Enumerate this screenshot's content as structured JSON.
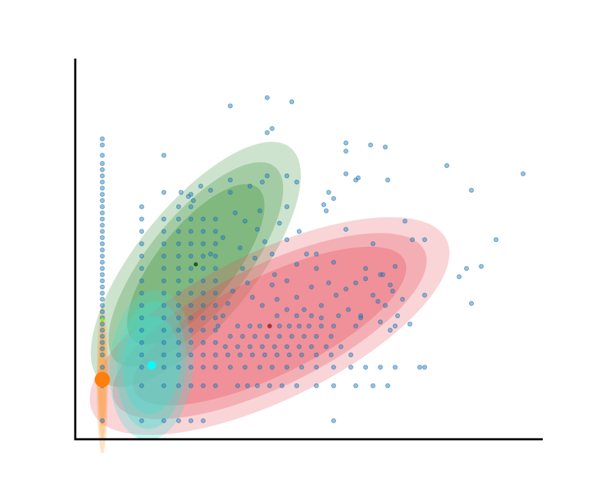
{
  "chart_data": {
    "type": "scatter",
    "title": "",
    "xlabel": "",
    "ylabel": "",
    "xlim": [
      0,
      19
    ],
    "ylim": [
      0,
      18.5
    ],
    "grid": false,
    "legend": "none",
    "colors": {
      "points": "#1f77b4",
      "green": "#2e8b2e",
      "red": "#e8505b",
      "cyan": "#40e0d0",
      "orange": "#ff7f0e"
    },
    "ellipses": [
      {
        "name": "green",
        "cx": 4.9,
        "cy": 8.5,
        "rx": [
          6.1,
          5.1,
          4.0
        ],
        "ry": [
          2.4,
          1.95,
          1.55
        ],
        "angle": 51,
        "color": "#2e8b2e",
        "opacity": [
          0.24,
          0.26,
          0.3
        ]
      },
      {
        "name": "red",
        "cx": 7.9,
        "cy": 5.5,
        "rx": [
          8.0,
          7.0,
          6.1
        ],
        "ry": [
          3.0,
          2.45,
          2.0
        ],
        "angle": 26,
        "color": "#e8505b",
        "opacity": [
          0.24,
          0.28,
          0.32
        ]
      },
      {
        "name": "cyan",
        "cx": 3.1,
        "cy": 3.6,
        "rx": [
          3.05,
          2.6,
          2.0
        ],
        "ry": [
          1.7,
          1.4,
          1.15
        ],
        "angle": 86,
        "color": "#40e0d0",
        "opacity": [
          0.28,
          0.32,
          0.38
        ]
      },
      {
        "name": "orange",
        "cx": 1.1,
        "cy": 2.9,
        "rx": [
          3.0,
          2.4,
          1.9
        ],
        "ry": [
          0.23,
          0.19,
          0.15
        ],
        "angle": 90,
        "color": "#ff9a3c",
        "opacity": [
          0.28,
          0.3,
          0.34
        ]
      }
    ],
    "means": [
      {
        "name": "green-mean",
        "x": 4.9,
        "y": 8.5,
        "color": "#1f5e1f",
        "size": 3
      },
      {
        "name": "red-mean",
        "x": 7.9,
        "y": 5.5,
        "color": "#c0282e",
        "size": 3
      },
      {
        "name": "cyan-mean",
        "x": 3.1,
        "y": 3.6,
        "color": "#00ffff",
        "size": 6
      },
      {
        "name": "orange-mean",
        "x": 1.1,
        "y": 2.9,
        "color": "#ff7f0e",
        "size": 11
      },
      {
        "name": "lime-mean",
        "x": 1.1,
        "y": 5.8,
        "color": "#7cfc00",
        "size": 2.5
      }
    ],
    "column_points": [
      {
        "x": 1.1,
        "y": [
          0.9,
          2.6,
          3.5,
          4.1,
          4.4,
          4.7,
          5.0,
          5.3,
          5.6,
          5.9,
          6.2,
          6.5,
          6.8,
          7.1,
          7.4,
          7.7,
          8.0,
          8.3,
          8.6,
          8.9,
          9.2,
          9.5,
          9.8,
          10.1,
          10.4,
          10.7,
          11.0,
          11.3,
          11.6,
          11.9,
          12.2,
          12.5,
          12.8,
          13.1,
          13.4,
          13.8,
          14.3,
          14.6
        ]
      },
      {
        "x": 2.7,
        "y": [
          0.9,
          2.6,
          3.5,
          4.1,
          4.7,
          5.3,
          5.9,
          6.5,
          7.1,
          7.7,
          8.3,
          8.9,
          9.5,
          10.1,
          10.7,
          11.3
        ]
      },
      {
        "x": 3.6,
        "y": [
          0.9,
          2.6,
          3.5,
          4.1,
          4.7,
          5.3,
          5.9,
          6.5,
          7.1,
          7.7,
          8.3,
          8.9,
          9.5,
          10.1,
          10.7
        ]
      },
      {
        "x": 4.2,
        "y": [
          0.9,
          2.6,
          3.5,
          4.1,
          4.7,
          5.3,
          5.9,
          6.5,
          7.1,
          7.7,
          8.3,
          8.9,
          9.5,
          10.1,
          10.7,
          11.3
        ]
      },
      {
        "x": 4.7,
        "y": [
          0.9,
          2.6,
          3.5,
          4.1,
          4.7,
          5.3,
          5.9,
          6.5,
          7.1,
          7.7,
          8.3,
          8.9,
          9.5,
          10.1,
          10.7,
          11.3,
          11.9
        ]
      },
      {
        "x": 5.2,
        "y": [
          0.9,
          2.6,
          3.5,
          4.1,
          4.7,
          5.3,
          5.9,
          6.5,
          7.1,
          7.7,
          8.3,
          8.9,
          9.5,
          10.1,
          10.7
        ]
      },
      {
        "x": 5.7,
        "y": [
          2.6,
          3.5,
          4.1,
          4.7,
          5.3,
          5.9,
          6.5,
          7.1,
          7.7,
          8.3,
          8.9,
          9.5,
          10.1,
          10.7
        ]
      }
    ],
    "points": [
      [
        6.3,
        16.2
      ],
      [
        7.8,
        16.6
      ],
      [
        8.8,
        16.4
      ],
      [
        7.8,
        14.9
      ],
      [
        8.0,
        15.1
      ],
      [
        3.6,
        13.8
      ],
      [
        3.6,
        12.0
      ],
      [
        4.6,
        11.8
      ],
      [
        5.5,
        12.1
      ],
      [
        6.3,
        12.0
      ],
      [
        6.3,
        12.6
      ],
      [
        7.1,
        12.3
      ],
      [
        7.6,
        12.5
      ],
      [
        7.8,
        12.8
      ],
      [
        8.6,
        12.8
      ],
      [
        9.0,
        12.5
      ],
      [
        10.3,
        12.0
      ],
      [
        10.5,
        11.7
      ],
      [
        10.1,
        11.4
      ],
      [
        10.2,
        11.1
      ],
      [
        11.0,
        12.9
      ],
      [
        11.5,
        12.7
      ],
      [
        11.0,
        14.4
      ],
      [
        11.0,
        14.0
      ],
      [
        12.0,
        14.3
      ],
      [
        12.6,
        14.2
      ],
      [
        12.7,
        12.6
      ],
      [
        11.4,
        12.6
      ],
      [
        13.4,
        10.6
      ],
      [
        13.7,
        9.7
      ],
      [
        14.2,
        9.7
      ],
      [
        15.1,
        13.3
      ],
      [
        16.1,
        12.1
      ],
      [
        18.2,
        12.9
      ],
      [
        17.1,
        9.7
      ],
      [
        16.5,
        8.4
      ],
      [
        15.9,
        8.3
      ],
      [
        16.1,
        6.6
      ],
      [
        14.2,
        7.0
      ],
      [
        15.6,
        7.9
      ],
      [
        12.4,
        8.0
      ],
      [
        13.3,
        6.8
      ],
      [
        13.6,
        5.6
      ],
      [
        12.3,
        6.7
      ],
      [
        11.4,
        5.5
      ],
      [
        13.0,
        5.5
      ],
      [
        12.6,
        6.5
      ],
      [
        11.0,
        10.2
      ],
      [
        11.0,
        7.3
      ],
      [
        12.1,
        9.5
      ],
      [
        9.1,
        10.1
      ],
      [
        9.4,
        9.0
      ],
      [
        9.8,
        8.3
      ],
      [
        10.3,
        7.6
      ],
      [
        11.4,
        7.6
      ],
      [
        11.8,
        8.3
      ],
      [
        12.5,
        8.0
      ],
      [
        12.1,
        7.0
      ],
      [
        12.8,
        7.5
      ],
      [
        13.1,
        6.0
      ],
      [
        13.0,
        8.4
      ],
      [
        10.6,
        7.0
      ],
      [
        10.0,
        6.5
      ],
      [
        9.6,
        7.4
      ],
      [
        9.0,
        6.9
      ],
      [
        8.6,
        7.7
      ],
      [
        8.2,
        6.8
      ],
      [
        8.0,
        7.5
      ],
      [
        7.6,
        6.5
      ],
      [
        7.2,
        6.9
      ],
      [
        7.0,
        7.6
      ],
      [
        6.8,
        8.3
      ],
      [
        6.4,
        7.2
      ],
      [
        6.2,
        6.6
      ],
      [
        6.0,
        6.0
      ],
      [
        5.8,
        5.5
      ],
      [
        6.6,
        5.5
      ],
      [
        7.1,
        5.5
      ],
      [
        7.5,
        5.5
      ],
      [
        7.9,
        5.5
      ],
      [
        8.3,
        5.5
      ],
      [
        8.7,
        5.5
      ],
      [
        9.1,
        5.5
      ],
      [
        9.5,
        5.5
      ],
      [
        10.0,
        5.5
      ],
      [
        10.5,
        5.5
      ],
      [
        6.3,
        5.0
      ],
      [
        6.8,
        5.0
      ],
      [
        7.3,
        5.0
      ],
      [
        7.8,
        5.0
      ],
      [
        8.3,
        5.0
      ],
      [
        8.8,
        5.0
      ],
      [
        9.3,
        5.0
      ],
      [
        9.8,
        5.0
      ],
      [
        10.4,
        5.0
      ],
      [
        6.1,
        4.5
      ],
      [
        6.6,
        4.5
      ],
      [
        7.1,
        4.5
      ],
      [
        7.6,
        4.5
      ],
      [
        8.1,
        4.5
      ],
      [
        8.6,
        4.5
      ],
      [
        9.1,
        4.5
      ],
      [
        9.6,
        4.5
      ],
      [
        10.2,
        4.5
      ],
      [
        10.8,
        4.5
      ],
      [
        6.2,
        4.1
      ],
      [
        6.7,
        4.1
      ],
      [
        7.2,
        4.1
      ],
      [
        7.7,
        4.1
      ],
      [
        8.2,
        4.1
      ],
      [
        8.7,
        4.1
      ],
      [
        9.2,
        4.1
      ],
      [
        9.8,
        4.1
      ],
      [
        10.4,
        4.1
      ],
      [
        11.2,
        4.1
      ],
      [
        6.3,
        3.5
      ],
      [
        6.9,
        3.5
      ],
      [
        7.5,
        3.5
      ],
      [
        8.0,
        3.5
      ],
      [
        8.6,
        3.5
      ],
      [
        9.2,
        3.5
      ],
      [
        9.8,
        3.5
      ],
      [
        10.5,
        3.5
      ],
      [
        11.2,
        3.5
      ],
      [
        11.8,
        3.5
      ],
      [
        12.4,
        3.5
      ],
      [
        13.0,
        3.5
      ],
      [
        14.0,
        3.5
      ],
      [
        14.2,
        3.5
      ],
      [
        6.6,
        2.6
      ],
      [
        7.0,
        2.6
      ],
      [
        7.4,
        2.6
      ],
      [
        7.9,
        2.6
      ],
      [
        8.4,
        2.6
      ],
      [
        9.0,
        2.6
      ],
      [
        9.8,
        2.6
      ],
      [
        10.5,
        2.6
      ],
      [
        11.4,
        2.6
      ],
      [
        12.1,
        2.6
      ],
      [
        12.7,
        2.6
      ],
      [
        10.5,
        0.9
      ],
      [
        8.2,
        6.0
      ],
      [
        8.6,
        6.3
      ],
      [
        9.0,
        6.0
      ],
      [
        9.3,
        6.3
      ],
      [
        9.6,
        6.0
      ],
      [
        10.0,
        5.9
      ],
      [
        10.7,
        6.0
      ],
      [
        11.1,
        6.3
      ],
      [
        11.6,
        6.0
      ],
      [
        8.0,
        9.0
      ],
      [
        7.3,
        8.8
      ],
      [
        6.7,
        9.3
      ],
      [
        6.0,
        9.8
      ],
      [
        5.5,
        9.0
      ],
      [
        7.4,
        10.2
      ],
      [
        8.6,
        9.7
      ],
      [
        9.0,
        8.5
      ],
      [
        9.8,
        9.0
      ],
      [
        8.1,
        8.0
      ],
      [
        10.5,
        8.6
      ],
      [
        11.8,
        7.8
      ],
      [
        12.9,
        7.2
      ],
      [
        11.6,
        5.9
      ],
      [
        12.4,
        5.7
      ],
      [
        12.8,
        5.3
      ],
      [
        6.9,
        10.6
      ],
      [
        7.5,
        11.1
      ],
      [
        8.3,
        10.5
      ],
      [
        8.6,
        11.3
      ],
      [
        5.1,
        12.3
      ],
      [
        4.8,
        11.6
      ],
      [
        4.3,
        12.0
      ],
      [
        6.5,
        11.0
      ],
      [
        7.7,
        9.6
      ]
    ]
  }
}
